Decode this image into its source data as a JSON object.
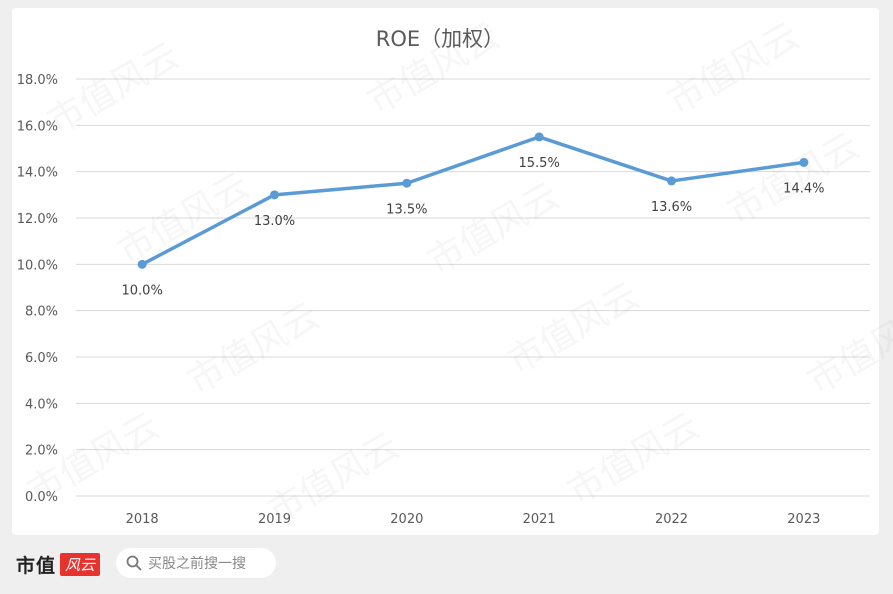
{
  "chart_data": {
    "type": "line",
    "title": "ROE（加权）",
    "categories": [
      "2018",
      "2019",
      "2020",
      "2021",
      "2022",
      "2023"
    ],
    "series": [
      {
        "values": [
          10.0,
          13.0,
          13.5,
          15.5,
          13.6,
          14.4
        ],
        "labels": [
          "10.0%",
          "13.0%",
          "13.5%",
          "15.5%",
          "13.6%",
          "14.4%"
        ],
        "color": "#5b9bd5"
      }
    ],
    "ylim": [
      0,
      18
    ],
    "ytick_step": 2,
    "ytick_labels": [
      "0.0%",
      "2.0%",
      "4.0%",
      "6.0%",
      "8.0%",
      "10.0%",
      "12.0%",
      "14.0%",
      "16.0%",
      "18.0%"
    ],
    "grid": true,
    "legend": "none"
  },
  "watermark": "市值风云",
  "footer": {
    "brand_name": "市值",
    "brand_badge": "风云",
    "search_placeholder": "买股之前搜一搜",
    "search_icon": "search-icon"
  }
}
